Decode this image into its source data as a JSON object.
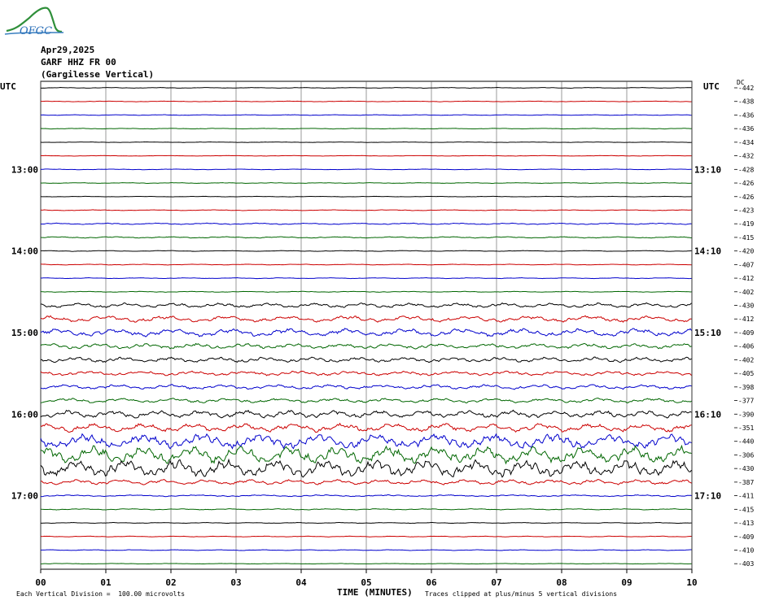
{
  "logo": {
    "text": "OFGC"
  },
  "header": {
    "date": "Apr29,2025",
    "station": "GARF HHZ FR 00",
    "name": "(Gargilesse Vertical)"
  },
  "chart_data": {
    "type": "line",
    "title": "",
    "left_axis_label": "UTC",
    "right_axis_label": "UTC",
    "dc_label": "DC",
    "xlabel": "TIME (MINUTES)",
    "xlim": [
      0,
      10
    ],
    "x_ticks": [
      "00",
      "01",
      "02",
      "03",
      "04",
      "05",
      "06",
      "07",
      "08",
      "09",
      "10"
    ],
    "left_hour_labels": [
      {
        "row": 6,
        "label": "13:00"
      },
      {
        "row": 12,
        "label": "14:00"
      },
      {
        "row": 18,
        "label": "15:00"
      },
      {
        "row": 24,
        "label": "16:00"
      },
      {
        "row": 30,
        "label": "17:00"
      }
    ],
    "right_hour_labels": [
      {
        "row": 6,
        "label": "13:10"
      },
      {
        "row": 12,
        "label": "14:10"
      },
      {
        "row": 18,
        "label": "15:10"
      },
      {
        "row": 24,
        "label": "16:10"
      },
      {
        "row": 30,
        "label": "17:10"
      }
    ],
    "trace_colors": [
      "#000000",
      "#cc0000",
      "#0000cc",
      "#006600"
    ],
    "dc_offsets": [
      "-442",
      "-438",
      "-436",
      "-436",
      "-434",
      "-432",
      "-428",
      "-426",
      "-426",
      "-423",
      "-419",
      "-415",
      "-420",
      "-407",
      "-412",
      "-402",
      "-430",
      "-412",
      "-409",
      "-406",
      "-402",
      "-405",
      "-398",
      "-377",
      "-390",
      "-351",
      "-440",
      "-306",
      "-430",
      "-387",
      "-411",
      "-415",
      "-413",
      "-409",
      "-410",
      "-403"
    ],
    "amplitudes": [
      0.25,
      0.25,
      0.25,
      0.25,
      0.2,
      0.2,
      0.25,
      0.25,
      0.2,
      0.3,
      0.5,
      0.5,
      0.3,
      0.3,
      0.3,
      0.3,
      1.6,
      2.2,
      2.8,
      1.8,
      1.8,
      1.6,
      1.6,
      1.6,
      2.6,
      3.0,
      5.0,
      6.0,
      6.0,
      1.8,
      0.6,
      0.4,
      0.3,
      0.3,
      0.3,
      0.2
    ],
    "grid": true
  },
  "footer": {
    "left": "Each Vertical Division =  100.00 microvolts",
    "right": "Traces clipped at plus/minus 5 vertical divisions"
  }
}
